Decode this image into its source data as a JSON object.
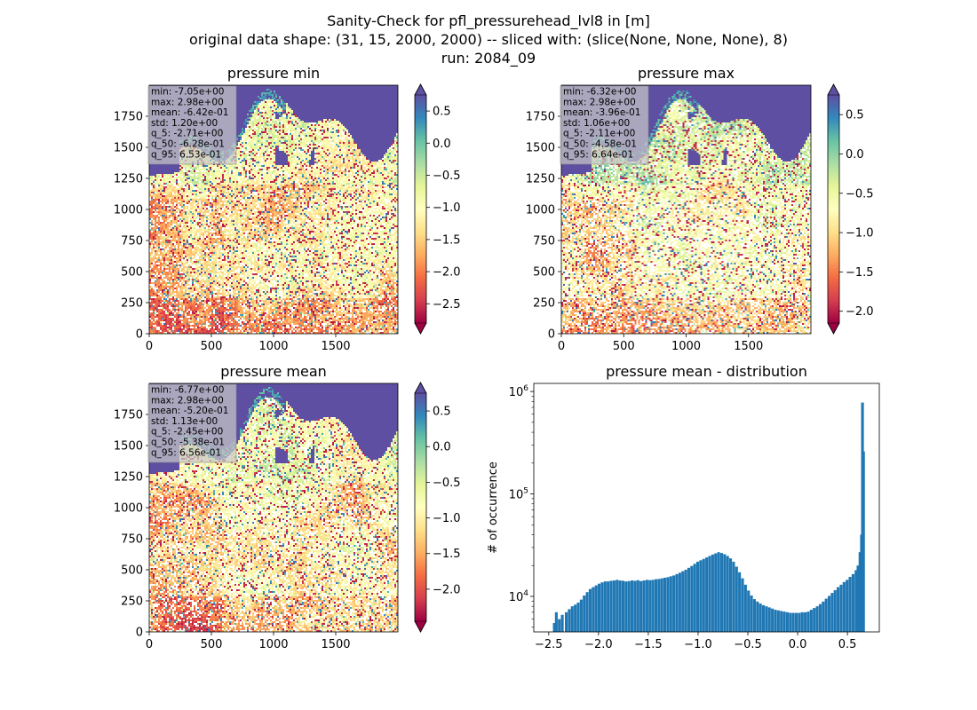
{
  "suptitle": {
    "line1": "Sanity-Check for pfl_pressurehead_lvl8 in [m]",
    "line2": "original data shape: (31, 15, 2000, 2000) -- sliced with: (slice(None, None, None), 8)",
    "line3": "run: 2084_09"
  },
  "chart_data": [
    {
      "type": "heatmap",
      "title": "pressure min",
      "colormap": "Spectral",
      "xlim": [
        0,
        2000
      ],
      "ylim": [
        0,
        2000
      ],
      "xticks": [
        "0",
        "500",
        "1000",
        "1500"
      ],
      "yticks": [
        "0",
        "250",
        "500",
        "750",
        "1000",
        "1250",
        "1500",
        "1750"
      ],
      "colorbar": {
        "range": [
          -2.8,
          0.75
        ],
        "extend": "both",
        "ticks": [
          "0.5",
          "0.0",
          "−0.5",
          "−1.0",
          "−1.5",
          "−2.0",
          "−2.5"
        ],
        "tick_values": [
          0.5,
          0.0,
          -0.5,
          -1.0,
          -1.5,
          -2.0,
          -2.5
        ]
      },
      "stats": [
        "min: -7.05e+00",
        "max: 2.98e+00",
        "mean: -6.42e-01",
        "std: 1.20e+00",
        "q_5: -2.71e+00",
        "q_50: -6.28e-01",
        "q_95: 6.53e-01"
      ]
    },
    {
      "type": "heatmap",
      "title": "pressure max",
      "colormap": "Spectral",
      "xlim": [
        0,
        2000
      ],
      "ylim": [
        0,
        2000
      ],
      "xticks": [
        "0",
        "500",
        "1000",
        "1500"
      ],
      "yticks": [
        "0",
        "250",
        "500",
        "750",
        "1000",
        "1250",
        "1500",
        "1750"
      ],
      "colorbar": {
        "range": [
          -2.15,
          0.75
        ],
        "extend": "both",
        "ticks": [
          "0.5",
          "0.0",
          "−0.5",
          "−1.0",
          "−1.5",
          "−2.0"
        ],
        "tick_values": [
          0.5,
          0.0,
          -0.5,
          -1.0,
          -1.5,
          -2.0
        ]
      },
      "stats": [
        "min: -6.32e+00",
        "max: 2.98e+00",
        "mean: -3.96e-01",
        "std: 1.06e+00",
        "q_5: -2.11e+00",
        "q_50: -4.58e-01",
        "q_95: 6.64e-01"
      ]
    },
    {
      "type": "heatmap",
      "title": "pressure mean",
      "colormap": "Spectral",
      "xlim": [
        0,
        2000
      ],
      "ylim": [
        0,
        2000
      ],
      "xticks": [
        "0",
        "500",
        "1000",
        "1500"
      ],
      "yticks": [
        "0",
        "250",
        "500",
        "750",
        "1000",
        "1250",
        "1500",
        "1750"
      ],
      "colorbar": {
        "range": [
          -2.45,
          0.75
        ],
        "extend": "both",
        "ticks": [
          "0.5",
          "0.0",
          "−0.5",
          "−1.0",
          "−1.5",
          "−2.0"
        ],
        "tick_values": [
          0.5,
          0.0,
          -0.5,
          -1.0,
          -1.5,
          -2.0
        ]
      },
      "stats": [
        "min: -6.77e+00",
        "max: 2.98e+00",
        "mean: -5.20e-01",
        "std: 1.13e+00",
        "q_5: -2.45e+00",
        "q_50: -5.38e-01",
        "q_95: 6.56e-01"
      ]
    },
    {
      "type": "bar",
      "title": "pressure mean - distribution",
      "ylabel": "# of occurrence",
      "yscale": "log",
      "ylim": [
        4500,
        1200000
      ],
      "xlim": [
        -2.65,
        0.82
      ],
      "color": "#1f77b4",
      "xticks": [
        "−2.5",
        "−2.0",
        "−1.5",
        "−1.0",
        "−0.5",
        "0.0",
        "0.5"
      ],
      "xtick_values": [
        -2.5,
        -2.0,
        -1.5,
        -1.0,
        -0.5,
        0.0,
        0.5
      ],
      "yticks": [
        {
          "value": 10000,
          "base": "10",
          "exp": "4"
        },
        {
          "value": 100000,
          "base": "10",
          "exp": "5"
        },
        {
          "value": 1000000,
          "base": "10",
          "exp": "6"
        }
      ],
      "bin_width": 0.0155,
      "bins": [
        [
          -2.45,
          5500
        ],
        [
          -2.43,
          7000
        ],
        [
          -2.4,
          6000
        ],
        [
          -2.37,
          6600
        ],
        [
          -2.33,
          7000
        ],
        [
          -2.3,
          7500
        ],
        [
          -2.27,
          8000
        ],
        [
          -2.24,
          8300
        ],
        [
          -2.21,
          8700
        ],
        [
          -2.18,
          9300
        ],
        [
          -2.15,
          10200
        ],
        [
          -2.12,
          11000
        ],
        [
          -2.09,
          11800
        ],
        [
          -2.06,
          12300
        ],
        [
          -2.03,
          12800
        ],
        [
          -2.0,
          13300
        ],
        [
          -1.97,
          13700
        ],
        [
          -1.94,
          14000
        ],
        [
          -1.91,
          14000
        ],
        [
          -1.88,
          14200
        ],
        [
          -1.85,
          14300
        ],
        [
          -1.82,
          14500
        ],
        [
          -1.79,
          14300
        ],
        [
          -1.76,
          14200
        ],
        [
          -1.73,
          14000
        ],
        [
          -1.7,
          14100
        ],
        [
          -1.67,
          14300
        ],
        [
          -1.64,
          14200
        ],
        [
          -1.61,
          14400
        ],
        [
          -1.58,
          14100
        ],
        [
          -1.55,
          14300
        ],
        [
          -1.52,
          14500
        ],
        [
          -1.49,
          14400
        ],
        [
          -1.46,
          14500
        ],
        [
          -1.43,
          14700
        ],
        [
          -1.4,
          14800
        ],
        [
          -1.37,
          15000
        ],
        [
          -1.34,
          15200
        ],
        [
          -1.31,
          15400
        ],
        [
          -1.28,
          15700
        ],
        [
          -1.25,
          16000
        ],
        [
          -1.22,
          16500
        ],
        [
          -1.19,
          17000
        ],
        [
          -1.16,
          17600
        ],
        [
          -1.13,
          18200
        ],
        [
          -1.1,
          19000
        ],
        [
          -1.07,
          19800
        ],
        [
          -1.04,
          20800
        ],
        [
          -1.01,
          21800
        ],
        [
          -0.98,
          22500
        ],
        [
          -0.95,
          23200
        ],
        [
          -0.92,
          24000
        ],
        [
          -0.89,
          24800
        ],
        [
          -0.86,
          25600
        ],
        [
          -0.83,
          26300
        ],
        [
          -0.8,
          27000
        ],
        [
          -0.77,
          26500
        ],
        [
          -0.74,
          25800
        ],
        [
          -0.71,
          24800
        ],
        [
          -0.68,
          23500
        ],
        [
          -0.65,
          21800
        ],
        [
          -0.62,
          19500
        ],
        [
          -0.59,
          17200
        ],
        [
          -0.56,
          15000
        ],
        [
          -0.53,
          13000
        ],
        [
          -0.5,
          11400
        ],
        [
          -0.47,
          10200
        ],
        [
          -0.44,
          9400
        ],
        [
          -0.41,
          8900
        ],
        [
          -0.38,
          8500
        ],
        [
          -0.35,
          8200
        ],
        [
          -0.32,
          8000
        ],
        [
          -0.29,
          7800
        ],
        [
          -0.26,
          7600
        ],
        [
          -0.23,
          7400
        ],
        [
          -0.2,
          7300
        ],
        [
          -0.17,
          7200
        ],
        [
          -0.14,
          7100
        ],
        [
          -0.11,
          7000
        ],
        [
          -0.08,
          6900
        ],
        [
          -0.05,
          6900
        ],
        [
          -0.02,
          6900
        ],
        [
          0.01,
          6900
        ],
        [
          0.04,
          7000
        ],
        [
          0.07,
          7000
        ],
        [
          0.1,
          7100
        ],
        [
          0.13,
          7400
        ],
        [
          0.16,
          7700
        ],
        [
          0.19,
          8000
        ],
        [
          0.22,
          8400
        ],
        [
          0.25,
          8900
        ],
        [
          0.28,
          9500
        ],
        [
          0.31,
          10100
        ],
        [
          0.34,
          10800
        ],
        [
          0.37,
          11500
        ],
        [
          0.4,
          12300
        ],
        [
          0.43,
          13000
        ],
        [
          0.46,
          13800
        ],
        [
          0.49,
          14500
        ],
        [
          0.52,
          15500
        ],
        [
          0.55,
          16500
        ],
        [
          0.58,
          18000
        ],
        [
          0.6,
          20000
        ],
        [
          0.62,
          27000
        ],
        [
          0.635,
          40000
        ],
        [
          0.645,
          780000
        ],
        [
          0.655,
          260000
        ]
      ]
    }
  ]
}
